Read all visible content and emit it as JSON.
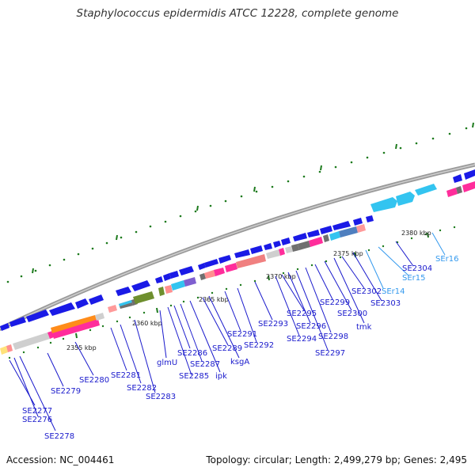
{
  "title": "Staphylococcus epidermidis ATCC 12228, complete genome",
  "footer": {
    "accession": "Accession: NC_004461",
    "topology": "Topology: circular; Length: 2,499,279 bp; Genes: 2,495"
  },
  "ruler_labels": [
    "2355 kbp",
    "2360 kbp",
    "2365 kbp",
    "2370 kbp",
    "2375 kbp",
    "2380 kbp"
  ],
  "genes": [
    {
      "label": "SE2276",
      "color": "#1a1acc"
    },
    {
      "label": "SE2277",
      "color": "#1a1acc"
    },
    {
      "label": "SE2278",
      "color": "#1a1acc"
    },
    {
      "label": "SE2279",
      "color": "#1a1acc"
    },
    {
      "label": "SE2280",
      "color": "#1a1acc"
    },
    {
      "label": "SE2281",
      "color": "#1a1acc"
    },
    {
      "label": "SE2282",
      "color": "#1a1acc"
    },
    {
      "label": "SE2283",
      "color": "#1a1acc"
    },
    {
      "label": "glmU",
      "color": "#1a1acc"
    },
    {
      "label": "SE2285",
      "color": "#1a1acc"
    },
    {
      "label": "SE2286",
      "color": "#1a1acc"
    },
    {
      "label": "SE2287",
      "color": "#1a1acc"
    },
    {
      "label": "ipk",
      "color": "#1a1acc"
    },
    {
      "label": "SE2289",
      "color": "#1a1acc"
    },
    {
      "label": "ksgA",
      "color": "#1a1acc"
    },
    {
      "label": "SE2291",
      "color": "#1a1acc"
    },
    {
      "label": "SE2292",
      "color": "#1a1acc"
    },
    {
      "label": "SE2293",
      "color": "#1a1acc"
    },
    {
      "label": "SE2294",
      "color": "#1a1acc"
    },
    {
      "label": "SE2295",
      "color": "#1a1acc"
    },
    {
      "label": "SE2296",
      "color": "#1a1acc"
    },
    {
      "label": "SE2297",
      "color": "#1a1acc"
    },
    {
      "label": "SE2298",
      "color": "#1a1acc"
    },
    {
      "label": "SE2299",
      "color": "#1a1acc"
    },
    {
      "label": "SE2300",
      "color": "#1a1acc"
    },
    {
      "label": "tmk",
      "color": "#1a1acc"
    },
    {
      "label": "SE2302",
      "color": "#1a1acc"
    },
    {
      "label": "SE2303",
      "color": "#1a1acc"
    },
    {
      "label": "SE2304",
      "color": "#1a1acc"
    },
    {
      "label": "SEr14",
      "color": "#3399ee"
    },
    {
      "label": "SEr15",
      "color": "#3399ee"
    },
    {
      "label": "SEr16",
      "color": "#3399ee"
    }
  ],
  "colors": {
    "backbone": "#9a9a9a",
    "forward_gene": "#1a1ae6",
    "rna_gene": "#33c4f0",
    "tick": "#2a7a2a"
  }
}
